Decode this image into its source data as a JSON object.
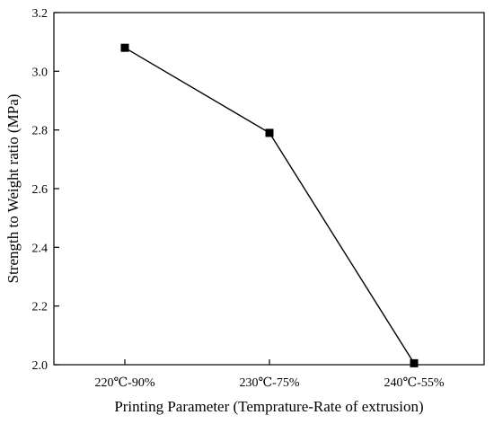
{
  "chart_data": {
    "type": "line",
    "categories": [
      "220℃-90%",
      "230℃-75%",
      "240℃-55%"
    ],
    "series": [
      {
        "values": [
          3.08,
          2.79,
          2.005
        ],
        "color": "#000000",
        "marker": "square"
      }
    ],
    "xlabel": "Printing Parameter (Temprature-Rate of extrusion)",
    "ylabel": "Strength to Weight ratio (MPa)",
    "ylim": [
      2.0,
      3.2
    ],
    "yticks": [
      "2.0",
      "2.2",
      "2.4",
      "2.6",
      "2.8",
      "3.0",
      "3.2"
    ],
    "grid": false,
    "legend": "none"
  }
}
